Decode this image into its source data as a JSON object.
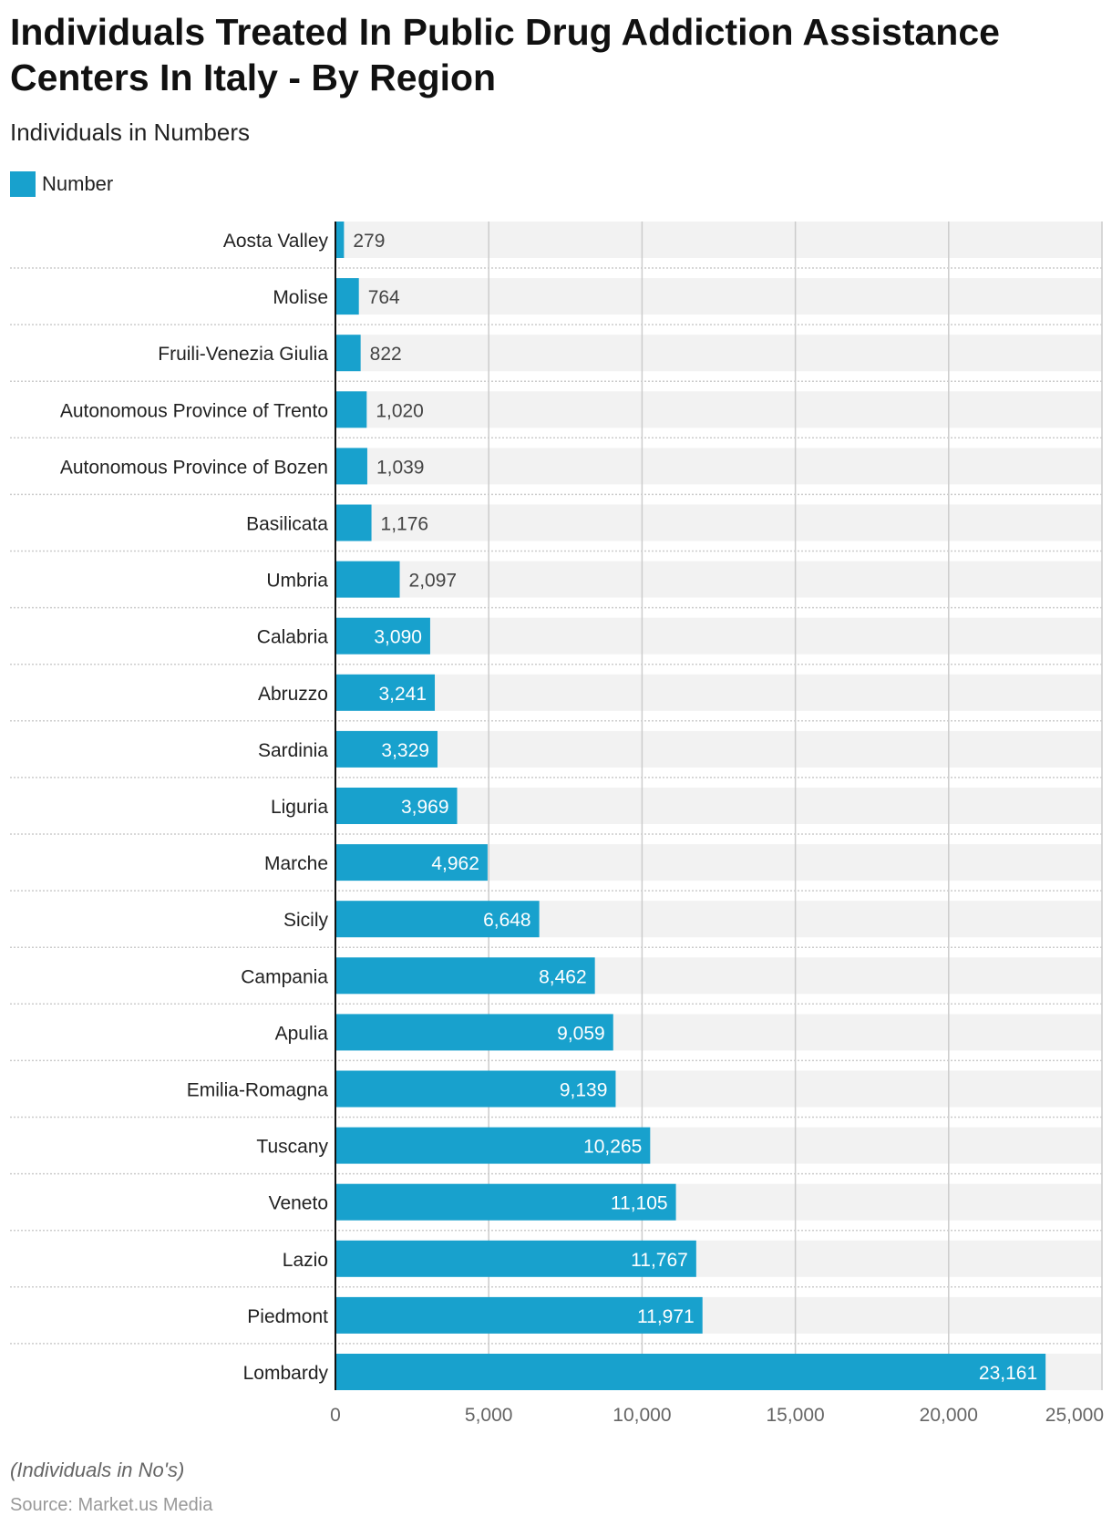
{
  "title": "Individuals Treated In Public Drug Addiction Assistance Centers In Italy - By Region",
  "subtitle": "Individuals in Numbers",
  "legend_label": "Number",
  "note": "(Individuals in No's)",
  "source": "Source: Market.us Media",
  "colors": {
    "bar": "#18a1cd",
    "track": "#f2f2f2",
    "grid": "#cccccc"
  },
  "chart_data": {
    "type": "bar",
    "orientation": "horizontal",
    "title": "Individuals Treated In Public Drug Addiction Assistance Centers In Italy - By Region",
    "subtitle": "Individuals in Numbers",
    "xlim": [
      0,
      25000
    ],
    "xticks": [
      0,
      5000,
      10000,
      15000,
      20000,
      25000
    ],
    "xtick_labels": [
      "0",
      "5,000",
      "10,000",
      "15,000",
      "20,000",
      "25,000"
    ],
    "grid": true,
    "legend": "top-left",
    "categories": [
      "Aosta Valley",
      "Molise",
      "Fruili-Venezia Giulia",
      "Autonomous Province of Trento",
      "Autonomous Province of Bozen",
      "Basilicata",
      "Umbria",
      "Calabria",
      "Abruzzo",
      "Sardinia",
      "Liguria",
      "Marche",
      "Sicily",
      "Campania",
      "Apulia",
      "Emilia-Romagna",
      "Tuscany",
      "Veneto",
      "Lazio",
      "Piedmont",
      "Lombardy"
    ],
    "series": [
      {
        "name": "Number",
        "values": [
          279,
          764,
          822,
          1020,
          1039,
          1176,
          2097,
          3090,
          3241,
          3329,
          3969,
          4962,
          6648,
          8462,
          9059,
          9139,
          10265,
          11105,
          11767,
          11971,
          23161
        ]
      }
    ],
    "value_labels": [
      "279",
      "764",
      "822",
      "1,020",
      "1,039",
      "1,176",
      "2,097",
      "3,090",
      "3,241",
      "3,329",
      "3,969",
      "4,962",
      "6,648",
      "8,462",
      "9,059",
      "9,139",
      "10,265",
      "11,105",
      "11,767",
      "11,971",
      "23,161"
    ]
  }
}
